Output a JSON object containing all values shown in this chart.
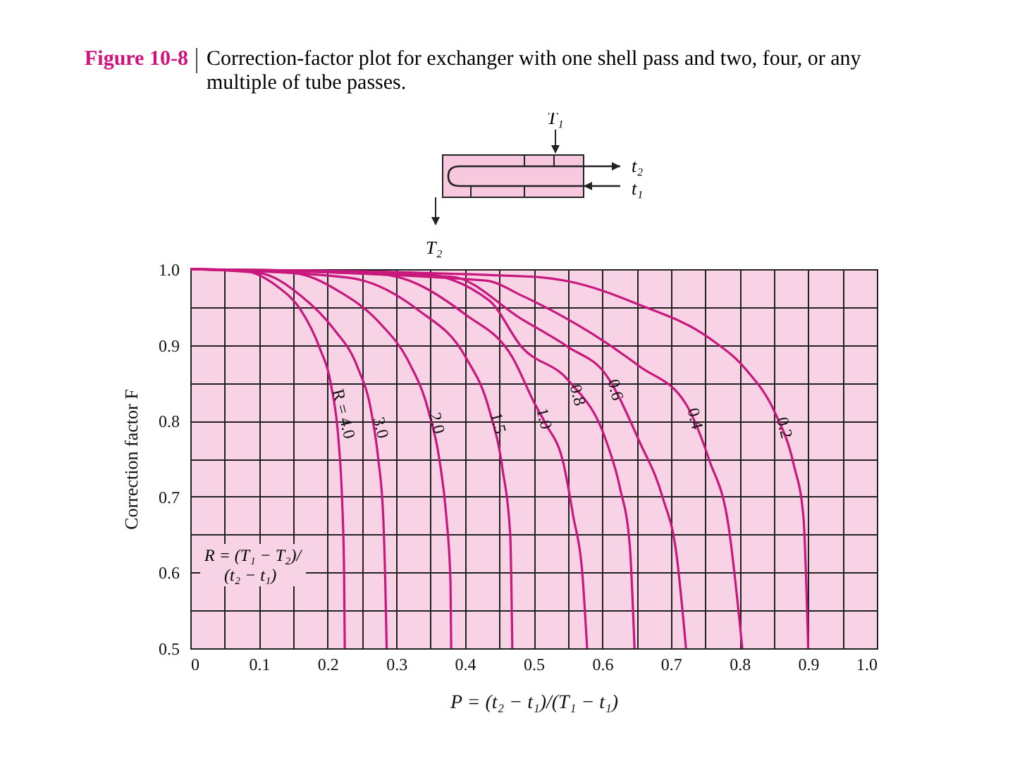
{
  "chart_data": {
    "type": "line",
    "title": "Figure 10-8",
    "subtitle": "Correction-factor plot for exchanger with one shell pass and two, four, or any multiple of tube passes.",
    "xlabel": "P = (t₂ − t₁)/(T₁ − t₁)",
    "ylabel": "Correction factor F",
    "annotations": [
      "R = (T₁ − T₂)/(t₂ − t₁)",
      "T₁",
      "t₂",
      "t₁",
      "T₂"
    ],
    "xlim": [
      0,
      1
    ],
    "ylim": [
      0.5,
      1
    ],
    "xticks": [
      0,
      {
        "value": 0.05,
        "label": null
      },
      0.1,
      {
        "value": 0.15,
        "label": null
      },
      0.2,
      {
        "value": 0.25,
        "label": null
      },
      0.3,
      {
        "value": 0.35,
        "label": null
      },
      0.4,
      {
        "value": 0.45,
        "label": null
      },
      0.5,
      {
        "value": 0.55,
        "label": null
      },
      0.6,
      {
        "value": 0.65,
        "label": null
      },
      0.7,
      {
        "value": 0.75,
        "label": null
      },
      0.8,
      {
        "value": 0.85,
        "label": null
      },
      0.9,
      {
        "value": 0.95,
        "label": null
      },
      {
        "value": 1,
        "label": "1.0"
      }
    ],
    "yticks": [
      0.5,
      {
        "value": 0.55,
        "label": null
      },
      0.6,
      {
        "value": 0.65,
        "label": null
      },
      0.7,
      {
        "value": 0.75,
        "label": null
      },
      0.8,
      {
        "value": 0.85,
        "label": null
      },
      0.9,
      {
        "value": 0.95,
        "label": null
      },
      {
        "value": 1,
        "label": "1.0"
      }
    ],
    "grid": true,
    "legend": false,
    "marker": "none",
    "line_style": "solid",
    "series": [
      {
        "name": "R = 4.0",
        "color": "#c8187e",
        "x": [
          0,
          0.07,
          0.127,
          0.161,
          0.188,
          0.205,
          0.216,
          0.221,
          0.224,
          0.225
        ],
        "values": [
          1,
          0.999,
          0.977,
          0.946,
          0.897,
          0.847,
          0.773,
          0.698,
          0.599,
          0.5
        ]
      },
      {
        "name": "3.0",
        "color": "#c8187e",
        "x": [
          0,
          0.1,
          0.161,
          0.209,
          0.243,
          0.264,
          0.274,
          0.281,
          0.284,
          0.286
        ],
        "values": [
          1,
          0.995,
          0.965,
          0.921,
          0.872,
          0.81,
          0.748,
          0.673,
          0.587,
          0.5
        ]
      },
      {
        "name": "2.0",
        "color": "#c8187e",
        "x": [
          0,
          0.15,
          0.216,
          0.277,
          0.318,
          0.346,
          0.363,
          0.373,
          0.379,
          0.38
        ],
        "values": [
          1,
          0.995,
          0.971,
          0.928,
          0.878,
          0.816,
          0.748,
          0.673,
          0.587,
          0.5
        ]
      },
      {
        "name": "1.5",
        "color": "#c8187e",
        "x": [
          0,
          0.229,
          0.332,
          0.401,
          0.435,
          0.455,
          0.466,
          0.469
        ],
        "values": [
          1,
          0.989,
          0.946,
          0.884,
          0.816,
          0.735,
          0.649,
          0.5
        ]
      },
      {
        "name": "1.0",
        "color": "#c8187e",
        "x": [
          0,
          0.28,
          0.401,
          0.469,
          0.502,
          0.517,
          0.544,
          0.558,
          0.571,
          0.578
        ],
        "values": [
          1,
          0.993,
          0.94,
          0.884,
          0.822,
          0.797,
          0.742,
          0.673,
          0.599,
          0.5
        ]
      },
      {
        "name": "0.8",
        "color": "#c8187e",
        "x": [
          0,
          0.33,
          0.435,
          0.483,
          0.551,
          0.606,
          0.626,
          0.64,
          0.647
        ],
        "values": [
          1,
          0.995,
          0.959,
          0.897,
          0.853,
          0.773,
          0.711,
          0.637,
          0.5
        ]
      },
      {
        "name": "0.6",
        "color": "#c8187e",
        "x": [
          0,
          0.38,
          0.483,
          0.551,
          0.606,
          0.654,
          0.688,
          0.708,
          0.722
        ],
        "values": [
          1,
          0.99,
          0.934,
          0.897,
          0.86,
          0.773,
          0.699,
          0.625,
          0.5
        ]
      },
      {
        "name": "0.4",
        "color": "#c8187e",
        "x": [
          0,
          0.43,
          0.483,
          0.585,
          0.654,
          0.722,
          0.756,
          0.784,
          0.804
        ],
        "values": [
          1,
          0.985,
          0.965,
          0.915,
          0.872,
          0.822,
          0.748,
          0.661,
          0.5
        ]
      },
      {
        "name": "0.2",
        "color": "#c8187e",
        "x": [
          0,
          0.5,
          0.551,
          0.654,
          0.756,
          0.811,
          0.852,
          0.879,
          0.893,
          0.9
        ],
        "values": [
          1,
          0.99,
          0.984,
          0.953,
          0.909,
          0.866,
          0.81,
          0.742,
          0.674,
          0.5
        ]
      }
    ]
  }
}
